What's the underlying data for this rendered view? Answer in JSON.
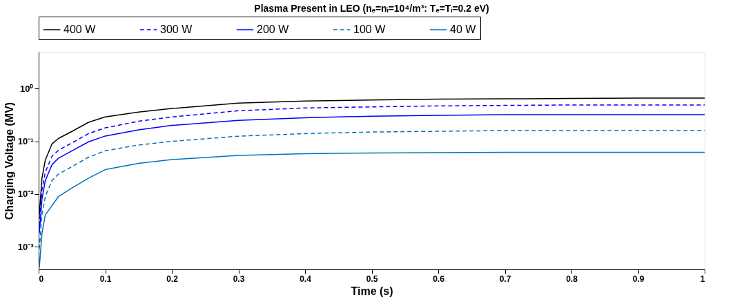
{
  "chart_data": {
    "type": "line",
    "title": "Plasma Present in LEO (nₑ=nᵢ=10⁴/m³: Tₑ=Tᵢ=0.2 eV)",
    "xlabel": "Time (s)",
    "ylabel": "Charging Voltage (MV)",
    "log": "y",
    "grid": false,
    "legend": "top",
    "marker": "none",
    "xlim": [
      0,
      1
    ],
    "xticks": [
      0,
      0.1,
      0.2,
      0.3,
      0.4,
      0.5,
      0.6,
      0.7,
      0.8,
      0.9,
      1
    ],
    "ylim": [
      0.00037,
      5
    ],
    "yticks": [
      {
        "value": 0.001,
        "label": "10⁻³"
      },
      {
        "value": 0.01,
        "label": "10⁻²"
      },
      {
        "value": 0.1,
        "label": "10⁻¹"
      },
      {
        "value": 1,
        "label": "10⁰"
      }
    ],
    "x": [
      0.001,
      0.005,
      0.01,
      0.02,
      0.03,
      0.05,
      0.075,
      0.1,
      0.15,
      0.2,
      0.3,
      0.4,
      0.5,
      0.6,
      0.7,
      0.8,
      0.9,
      1.0
    ],
    "series": [
      {
        "name": "400 W",
        "color": "#000000",
        "line_style": "solid",
        "values": [
          0.004,
          0.02,
          0.044,
          0.089,
          0.114,
          0.154,
          0.23,
          0.29,
          0.36,
          0.42,
          0.53,
          0.58,
          0.61,
          0.63,
          0.64,
          0.65,
          0.66,
          0.66
        ]
      },
      {
        "name": "300 W",
        "color": "#0000ff",
        "line_style": "dashed",
        "values": [
          0.0025,
          0.012,
          0.026,
          0.052,
          0.068,
          0.093,
          0.14,
          0.18,
          0.24,
          0.29,
          0.38,
          0.43,
          0.45,
          0.47,
          0.48,
          0.49,
          0.49,
          0.49
        ]
      },
      {
        "name": "200 W",
        "color": "#0000ff",
        "line_style": "solid",
        "values": [
          0.0018,
          0.008,
          0.018,
          0.036,
          0.048,
          0.066,
          0.098,
          0.126,
          0.165,
          0.2,
          0.25,
          0.28,
          0.3,
          0.31,
          0.32,
          0.32,
          0.32,
          0.32
        ]
      },
      {
        "name": "100 W",
        "color": "#0072bd",
        "line_style": "dashed",
        "values": [
          0.0009,
          0.004,
          0.009,
          0.018,
          0.024,
          0.033,
          0.05,
          0.066,
          0.085,
          0.1,
          0.125,
          0.14,
          0.15,
          0.155,
          0.16,
          0.16,
          0.16,
          0.16
        ]
      },
      {
        "name": "40 W",
        "color": "#0072bd",
        "line_style": "solid",
        "values": [
          0.0004,
          0.0018,
          0.004,
          0.006,
          0.009,
          0.013,
          0.02,
          0.029,
          0.038,
          0.045,
          0.054,
          0.058,
          0.06,
          0.061,
          0.062,
          0.062,
          0.062,
          0.062
        ]
      }
    ]
  }
}
